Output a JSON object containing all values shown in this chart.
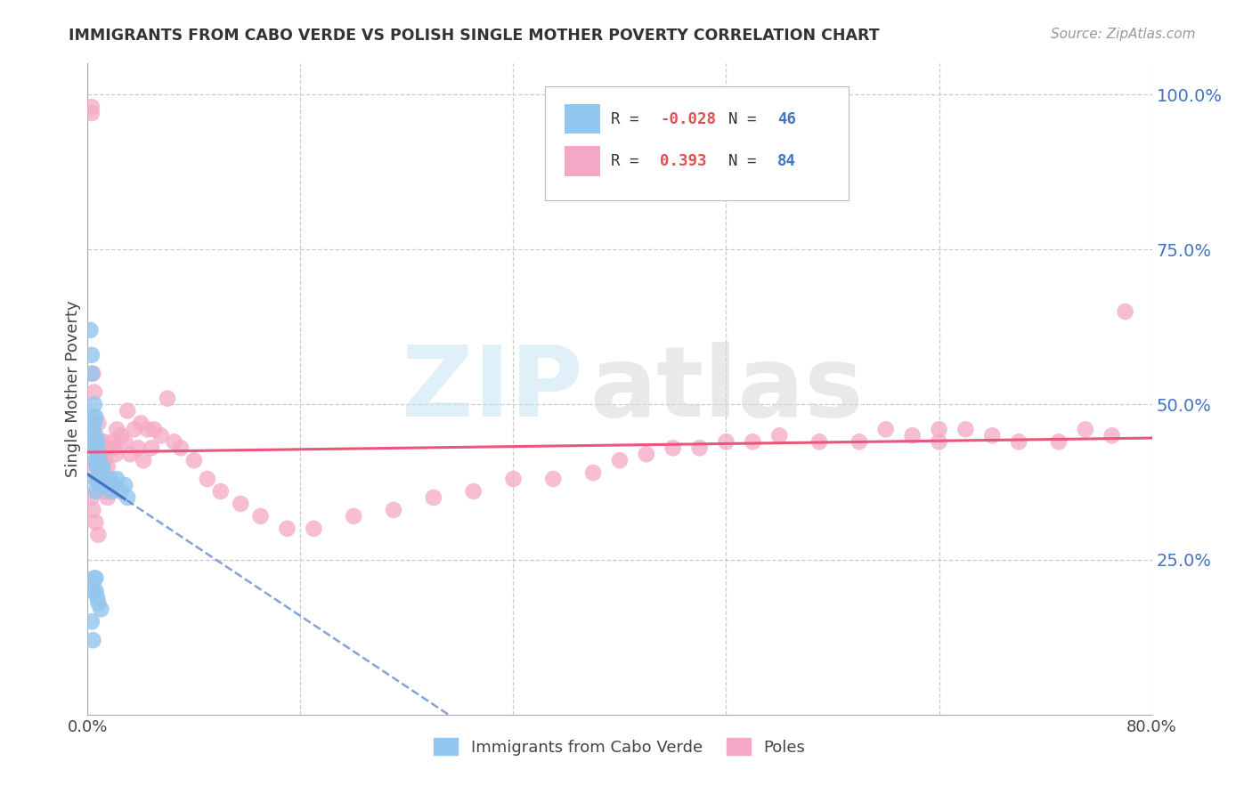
{
  "title": "IMMIGRANTS FROM CABO VERDE VS POLISH SINGLE MOTHER POVERTY CORRELATION CHART",
  "source": "Source: ZipAtlas.com",
  "ylabel": "Single Mother Poverty",
  "xmin": 0.0,
  "xmax": 0.8,
  "ymin": 0.0,
  "ymax": 1.05,
  "ytick_vals": [
    0.25,
    0.5,
    0.75,
    1.0
  ],
  "ytick_labels": [
    "25.0%",
    "50.0%",
    "75.0%",
    "100.0%"
  ],
  "xtick_vals": [
    0.0,
    0.8
  ],
  "xtick_labels": [
    "0.0%",
    "80.0%"
  ],
  "legend_blue_label": "Immigrants from Cabo Verde",
  "legend_pink_label": "Poles",
  "r_blue": "-0.028",
  "n_blue": "46",
  "r_pink": "0.393",
  "n_pink": "84",
  "blue_scatter_color": "#93C6EE",
  "pink_scatter_color": "#F5A8C5",
  "blue_line_color": "#4472C4",
  "pink_line_color": "#E8577A",
  "watermark_zip_color": "#C8E4F5",
  "watermark_atlas_color": "#D8D8D8",
  "cabo_verde_x": [
    0.002,
    0.003,
    0.003,
    0.004,
    0.004,
    0.005,
    0.005,
    0.005,
    0.006,
    0.006,
    0.006,
    0.006,
    0.007,
    0.007,
    0.007,
    0.007,
    0.007,
    0.008,
    0.008,
    0.008,
    0.009,
    0.009,
    0.01,
    0.01,
    0.011,
    0.012,
    0.013,
    0.015,
    0.017,
    0.018,
    0.02,
    0.022,
    0.025,
    0.028,
    0.03,
    0.005,
    0.006,
    0.007,
    0.008,
    0.01,
    0.003,
    0.004,
    0.005,
    0.006,
    0.004,
    0.006
  ],
  "cabo_verde_y": [
    0.62,
    0.58,
    0.55,
    0.48,
    0.46,
    0.5,
    0.47,
    0.44,
    0.45,
    0.43,
    0.41,
    0.48,
    0.44,
    0.43,
    0.42,
    0.41,
    0.4,
    0.42,
    0.41,
    0.4,
    0.38,
    0.37,
    0.4,
    0.39,
    0.4,
    0.38,
    0.37,
    0.37,
    0.38,
    0.36,
    0.37,
    0.38,
    0.36,
    0.37,
    0.35,
    0.22,
    0.2,
    0.19,
    0.18,
    0.17,
    0.15,
    0.12,
    0.38,
    0.36,
    0.2,
    0.22
  ],
  "poles_x": [
    0.003,
    0.003,
    0.004,
    0.005,
    0.005,
    0.006,
    0.006,
    0.007,
    0.007,
    0.008,
    0.008,
    0.009,
    0.009,
    0.01,
    0.01,
    0.011,
    0.011,
    0.012,
    0.012,
    0.013,
    0.013,
    0.014,
    0.015,
    0.015,
    0.016,
    0.017,
    0.018,
    0.019,
    0.02,
    0.021,
    0.022,
    0.025,
    0.028,
    0.03,
    0.032,
    0.035,
    0.038,
    0.04,
    0.042,
    0.045,
    0.048,
    0.05,
    0.055,
    0.06,
    0.065,
    0.07,
    0.08,
    0.09,
    0.1,
    0.115,
    0.13,
    0.15,
    0.17,
    0.2,
    0.23,
    0.26,
    0.29,
    0.32,
    0.35,
    0.38,
    0.4,
    0.42,
    0.44,
    0.46,
    0.48,
    0.5,
    0.52,
    0.55,
    0.58,
    0.6,
    0.62,
    0.64,
    0.66,
    0.68,
    0.7,
    0.73,
    0.75,
    0.77,
    0.78,
    0.64,
    0.003,
    0.004,
    0.006,
    0.008
  ],
  "poles_y": [
    0.97,
    0.98,
    0.55,
    0.52,
    0.45,
    0.43,
    0.4,
    0.44,
    0.38,
    0.47,
    0.41,
    0.44,
    0.38,
    0.42,
    0.37,
    0.42,
    0.38,
    0.44,
    0.39,
    0.41,
    0.36,
    0.38,
    0.4,
    0.35,
    0.37,
    0.37,
    0.36,
    0.44,
    0.43,
    0.42,
    0.46,
    0.45,
    0.44,
    0.49,
    0.42,
    0.46,
    0.43,
    0.47,
    0.41,
    0.46,
    0.43,
    0.46,
    0.45,
    0.51,
    0.44,
    0.43,
    0.41,
    0.38,
    0.36,
    0.34,
    0.32,
    0.3,
    0.3,
    0.32,
    0.33,
    0.35,
    0.36,
    0.38,
    0.38,
    0.39,
    0.41,
    0.42,
    0.43,
    0.43,
    0.44,
    0.44,
    0.45,
    0.44,
    0.44,
    0.46,
    0.45,
    0.44,
    0.46,
    0.45,
    0.44,
    0.44,
    0.46,
    0.45,
    0.65,
    0.46,
    0.35,
    0.33,
    0.31,
    0.29
  ]
}
